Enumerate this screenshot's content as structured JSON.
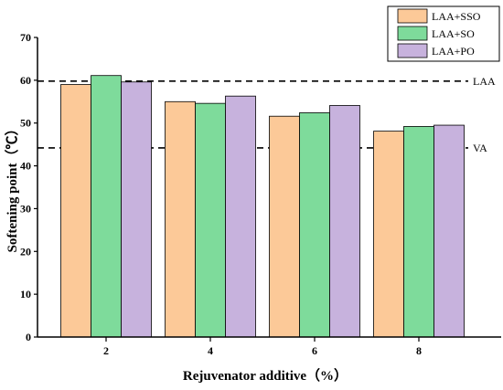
{
  "chart_data": {
    "type": "bar",
    "xlabel": "Rejuvenator additive（%）",
    "ylabel": "Softening point（℃）",
    "categories": [
      "2",
      "4",
      "6",
      "8"
    ],
    "ylim": [
      0,
      70
    ],
    "yticks": [
      "0",
      "10",
      "20",
      "30",
      "40",
      "50",
      "60",
      "70"
    ],
    "series": [
      {
        "name": "LAA+SSO",
        "color": "#FCC998",
        "values": [
          59.0,
          55.0,
          51.6,
          48.1
        ]
      },
      {
        "name": "LAA+SO",
        "color": "#7EDB9B",
        "values": [
          61.1,
          54.6,
          52.4,
          49.2
        ]
      },
      {
        "name": "LAA+PO",
        "color": "#C7B2DD",
        "values": [
          59.6,
          56.3,
          54.1,
          49.5
        ]
      }
    ],
    "reference_lines": [
      {
        "label": "LAA",
        "value": 59.8
      },
      {
        "label": "VA",
        "value": 44.2
      }
    ],
    "legend_position": "top-right",
    "grid": false
  }
}
